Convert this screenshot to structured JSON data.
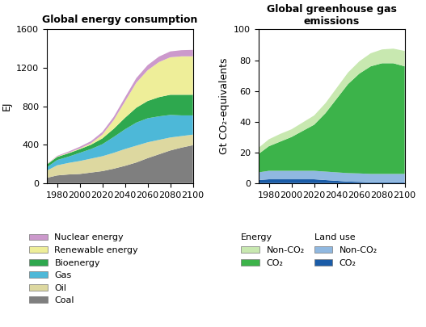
{
  "chart_data": [
    {
      "type": "area",
      "stacked": true,
      "title": "Global energy consumption",
      "y_label": "EJ",
      "x": [
        1971,
        1980,
        1990,
        2000,
        2010,
        2020,
        2030,
        2040,
        2050,
        2060,
        2070,
        2080,
        2090,
        2100
      ],
      "series": [
        {
          "name": "Coal",
          "color": "#7f7f7f",
          "values": [
            55,
            80,
            90,
            95,
            110,
            125,
            150,
            180,
            215,
            260,
            300,
            340,
            370,
            395
          ]
        },
        {
          "name": "Oil",
          "color": "#ddd8a0",
          "values": [
            75,
            105,
            120,
            135,
            145,
            155,
            165,
            175,
            175,
            165,
            150,
            135,
            120,
            110
          ]
        },
        {
          "name": "Gas",
          "color": "#4db8d8",
          "values": [
            35,
            55,
            65,
            85,
            100,
            125,
            165,
            205,
            240,
            250,
            245,
            235,
            215,
            200
          ]
        },
        {
          "name": "Bioenergy",
          "color": "#2ea84e",
          "values": [
            28,
            32,
            35,
            38,
            45,
            60,
            85,
            120,
            155,
            180,
            200,
            210,
            215,
            215
          ]
        },
        {
          "name": "Renewable energy",
          "color": "#eeee99",
          "values": [
            3,
            5,
            6,
            8,
            15,
            40,
            90,
            170,
            260,
            320,
            365,
            390,
            400,
            400
          ]
        },
        {
          "name": "Nuclear energy",
          "color": "#cc99cc",
          "values": [
            2,
            6,
            12,
            17,
            22,
            27,
            34,
            42,
            48,
            53,
            57,
            61,
            64,
            67
          ]
        }
      ],
      "xlim": [
        1971,
        2100
      ],
      "xticks": [
        1980,
        2000,
        2020,
        2040,
        2060,
        2080,
        2100
      ],
      "ylim": [
        0,
        1600
      ],
      "yticks": [
        0,
        400,
        800,
        1200,
        1600
      ],
      "legend": "below"
    },
    {
      "type": "area",
      "stacked": true,
      "title": "Global greenhouse gas emissions",
      "y_label": "Gt CO₂-equivalents",
      "x": [
        1971,
        1980,
        1990,
        2000,
        2010,
        2020,
        2030,
        2040,
        2050,
        2060,
        2070,
        2080,
        2090,
        2100
      ],
      "series": [
        {
          "name": "CO₂",
          "group": "Land use",
          "color": "#1a5ca8",
          "values": [
            2.0,
            2.5,
            2.5,
            2.5,
            2.5,
            2.5,
            2.0,
            1.5,
            1.0,
            0.8,
            0.5,
            0.5,
            0.5,
            0.5
          ]
        },
        {
          "name": "Non-CO₂",
          "group": "Land use",
          "color": "#90b8e0",
          "values": [
            5.0,
            5.5,
            5.5,
            5.5,
            5.5,
            5.5,
            5.5,
            5.5,
            5.5,
            5.5,
            5.5,
            5.5,
            5.5,
            5.5
          ]
        },
        {
          "name": "CO₂",
          "group": "Energy",
          "color": "#3cb34a",
          "values": [
            12,
            16,
            19,
            22,
            26,
            30,
            38,
            48,
            58,
            65,
            70,
            72,
            72,
            70
          ]
        },
        {
          "name": "Non-CO₂",
          "group": "Energy",
          "color": "#c8e8b0",
          "values": [
            4.0,
            4.5,
            5.0,
            5.0,
            5.5,
            6.0,
            6.5,
            7.0,
            7.5,
            8.0,
            8.5,
            9.0,
            9.5,
            10.0
          ]
        }
      ],
      "xlim": [
        1971,
        2100
      ],
      "xticks": [
        1980,
        2000,
        2020,
        2040,
        2060,
        2080,
        2100
      ],
      "ylim": [
        0,
        100
      ],
      "yticks": [
        0,
        20,
        40,
        60,
        80,
        100
      ],
      "legend": "below"
    }
  ]
}
